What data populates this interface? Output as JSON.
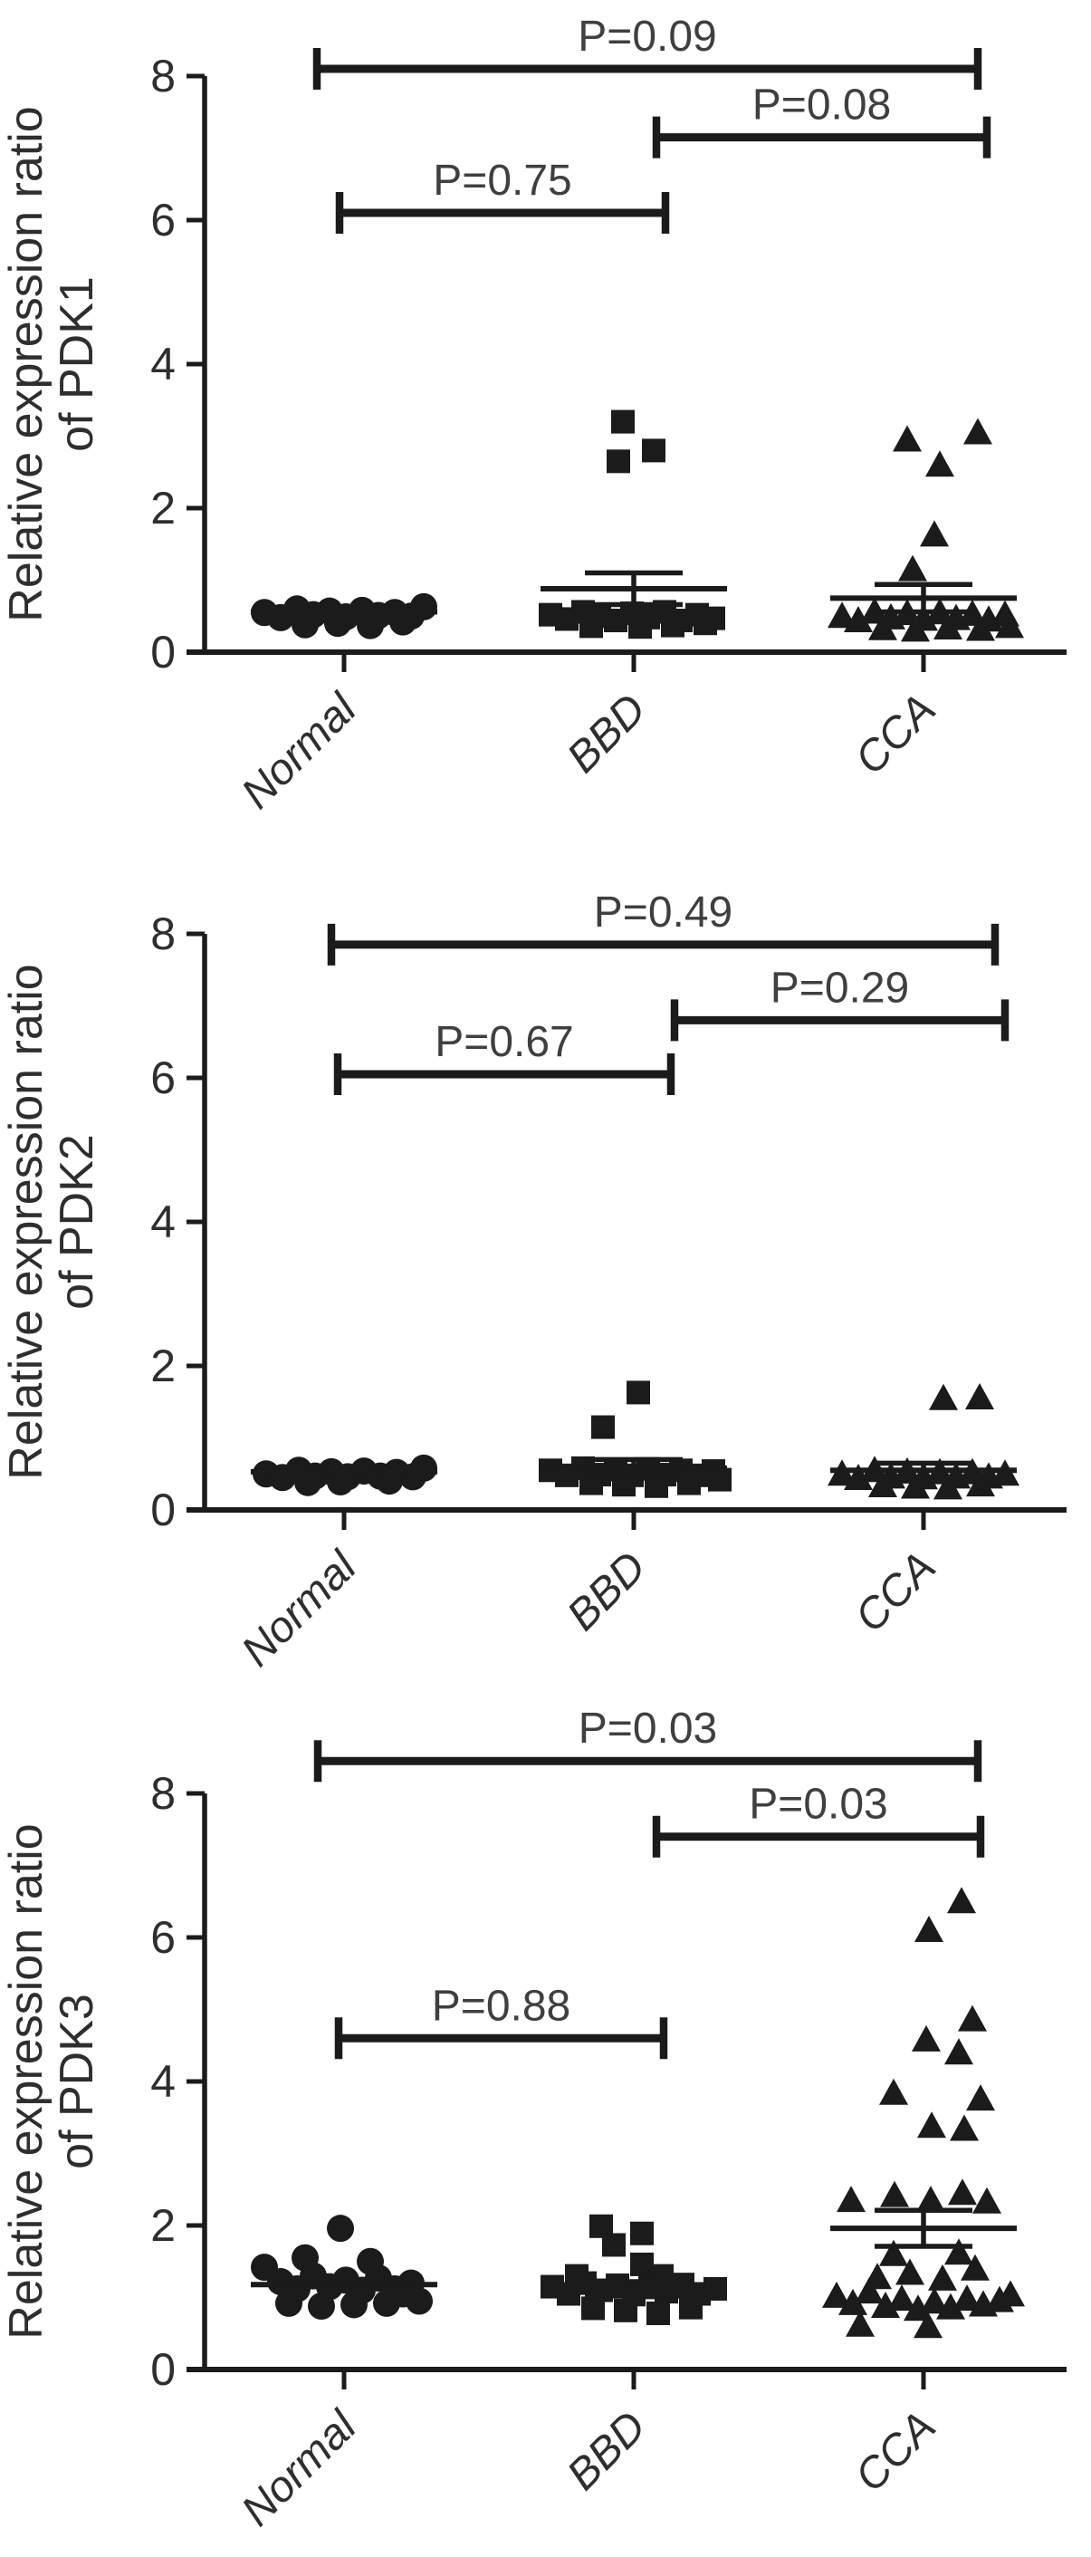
{
  "figure": {
    "ink_color": "#1b1b1b",
    "text_strong": "#2e2e2e",
    "text_soft": "#3f3f3f",
    "background": "#ffffff"
  },
  "chart_data": [
    {
      "type": "scatter",
      "panel": "PDK1",
      "ylabel_line1": "Relative expression ratio",
      "ylabel_line2": "of PDK1",
      "ylim": [
        0,
        8
      ],
      "yticks": [
        0,
        2,
        4,
        6,
        8
      ],
      "grid": false,
      "categories": [
        "Normal",
        "BBD",
        "CCA"
      ],
      "groups": [
        {
          "name": "Normal",
          "marker": "circle",
          "mean": 0.56,
          "sem": 0,
          "points": [
            [
              -88,
              0.55
            ],
            [
              -70,
              0.48
            ],
            [
              -52,
              0.6
            ],
            [
              -34,
              0.52
            ],
            [
              -16,
              0.57
            ],
            [
              2,
              0.49
            ],
            [
              20,
              0.58
            ],
            [
              38,
              0.51
            ],
            [
              56,
              0.55
            ],
            [
              74,
              0.5
            ],
            [
              -43,
              0.38
            ],
            [
              -7,
              0.4
            ],
            [
              29,
              0.37
            ],
            [
              65,
              0.42
            ],
            [
              88,
              0.63
            ]
          ]
        },
        {
          "name": "BBD",
          "marker": "square",
          "mean": 0.88,
          "sem": 0.22,
          "points": [
            [
              -92,
              0.52
            ],
            [
              -74,
              0.46
            ],
            [
              -56,
              0.56
            ],
            [
              -38,
              0.5
            ],
            [
              -20,
              0.44
            ],
            [
              -2,
              0.54
            ],
            [
              16,
              0.48
            ],
            [
              34,
              0.56
            ],
            [
              52,
              0.44
            ],
            [
              70,
              0.52
            ],
            [
              88,
              0.47
            ],
            [
              -47,
              0.36
            ],
            [
              7,
              0.35
            ],
            [
              43,
              0.37
            ],
            [
              79,
              0.4
            ],
            [
              -12,
              3.2
            ],
            [
              -17,
              2.65
            ],
            [
              22,
              2.8
            ]
          ]
        },
        {
          "name": "CCA",
          "marker": "triangle",
          "mean": 0.75,
          "sem": 0.19,
          "points": [
            [
              -90,
              0.5
            ],
            [
              -72,
              0.44
            ],
            [
              -54,
              0.56
            ],
            [
              -36,
              0.48
            ],
            [
              -18,
              0.54
            ],
            [
              0,
              0.46
            ],
            [
              18,
              0.55
            ],
            [
              36,
              0.47
            ],
            [
              54,
              0.53
            ],
            [
              72,
              0.45
            ],
            [
              90,
              0.52
            ],
            [
              -45,
              0.33
            ],
            [
              -9,
              0.31
            ],
            [
              27,
              0.34
            ],
            [
              63,
              0.32
            ],
            [
              95,
              0.36
            ],
            [
              -18,
              2.95
            ],
            [
              18,
              2.6
            ],
            [
              60,
              3.05
            ],
            [
              12,
              1.63
            ],
            [
              -12,
              1.15
            ]
          ]
        }
      ],
      "comparisons": [
        {
          "label": "P=0.75",
          "from": 0,
          "to": 1,
          "bar": 6.1,
          "dx": [
            -5,
            35
          ]
        },
        {
          "label": "P=0.08",
          "from": 1,
          "to": 2,
          "bar": 7.15,
          "dx": [
            25,
            70
          ]
        },
        {
          "label": "P=0.09",
          "from": 0,
          "to": 2,
          "bar": 8.1,
          "dx": [
            -30,
            60
          ]
        }
      ]
    },
    {
      "type": "scatter",
      "panel": "PDK2",
      "ylabel_line1": "Relative expression ratio",
      "ylabel_line2": "of PDK2",
      "ylim": [
        0,
        8
      ],
      "yticks": [
        0,
        2,
        4,
        6,
        8
      ],
      "grid": false,
      "categories": [
        "Normal",
        "BBD",
        "CCA"
      ],
      "groups": [
        {
          "name": "Normal",
          "marker": "circle",
          "mean": 0.53,
          "sem": 0,
          "points": [
            [
              -86,
              0.5
            ],
            [
              -68,
              0.45
            ],
            [
              -50,
              0.55
            ],
            [
              -32,
              0.47
            ],
            [
              -14,
              0.53
            ],
            [
              4,
              0.46
            ],
            [
              22,
              0.54
            ],
            [
              40,
              0.47
            ],
            [
              58,
              0.52
            ],
            [
              76,
              0.46
            ],
            [
              -40,
              0.38
            ],
            [
              -4,
              0.39
            ],
            [
              50,
              0.4
            ],
            [
              88,
              0.58
            ]
          ]
        },
        {
          "name": "BBD",
          "marker": "square",
          "mean": 0.58,
          "sem": 0.12,
          "points": [
            [
              -92,
              0.55
            ],
            [
              -74,
              0.48
            ],
            [
              -56,
              0.58
            ],
            [
              -38,
              0.49
            ],
            [
              -20,
              0.56
            ],
            [
              -2,
              0.48
            ],
            [
              16,
              0.57
            ],
            [
              34,
              0.49
            ],
            [
              52,
              0.55
            ],
            [
              70,
              0.48
            ],
            [
              88,
              0.54
            ],
            [
              -47,
              0.37
            ],
            [
              -11,
              0.35
            ],
            [
              25,
              0.33
            ],
            [
              61,
              0.37
            ],
            [
              95,
              0.42
            ],
            [
              5,
              1.63
            ],
            [
              -34,
              1.15
            ]
          ]
        },
        {
          "name": "CCA",
          "marker": "triangle",
          "mean": 0.55,
          "sem": 0.1,
          "points": [
            [
              -90,
              0.5
            ],
            [
              -72,
              0.44
            ],
            [
              -54,
              0.55
            ],
            [
              -36,
              0.46
            ],
            [
              -18,
              0.53
            ],
            [
              0,
              0.45
            ],
            [
              18,
              0.52
            ],
            [
              36,
              0.46
            ],
            [
              54,
              0.52
            ],
            [
              72,
              0.46
            ],
            [
              90,
              0.5
            ],
            [
              -45,
              0.34
            ],
            [
              -9,
              0.32
            ],
            [
              27,
              0.31
            ],
            [
              63,
              0.35
            ],
            [
              22,
              1.55
            ],
            [
              62,
              1.56
            ]
          ]
        }
      ],
      "comparisons": [
        {
          "label": "P=0.67",
          "from": 0,
          "to": 1,
          "bar": 6.05,
          "dx": [
            -7,
            41
          ]
        },
        {
          "label": "P=0.29",
          "from": 1,
          "to": 2,
          "bar": 6.8,
          "dx": [
            45,
            90
          ]
        },
        {
          "label": "P=0.49",
          "from": 0,
          "to": 2,
          "bar": 7.85,
          "dx": [
            -14,
            79
          ]
        }
      ]
    },
    {
      "type": "scatter",
      "panel": "PDK3",
      "ylabel_line1": "Relative expression ratio",
      "ylabel_line2": "of PDK3",
      "ylim": [
        0,
        8
      ],
      "yticks": [
        0,
        2,
        4,
        6,
        8
      ],
      "grid": false,
      "categories": [
        "Normal",
        "BBD",
        "CCA"
      ],
      "groups": [
        {
          "name": "Normal",
          "marker": "circle",
          "mean": 1.18,
          "sem": 0,
          "points": [
            [
              -88,
              1.42
            ],
            [
              -70,
              1.22
            ],
            [
              -52,
              1.12
            ],
            [
              -34,
              1.3
            ],
            [
              -16,
              1.15
            ],
            [
              2,
              1.24
            ],
            [
              20,
              1.1
            ],
            [
              38,
              1.27
            ],
            [
              56,
              1.12
            ],
            [
              74,
              1.2
            ],
            [
              -61,
              0.92
            ],
            [
              -25,
              0.88
            ],
            [
              11,
              0.9
            ],
            [
              47,
              0.92
            ],
            [
              83,
              0.95
            ],
            [
              -43,
              1.55
            ],
            [
              29,
              1.5
            ],
            [
              65,
              1.05
            ],
            [
              -4,
              1.96
            ]
          ]
        },
        {
          "name": "BBD",
          "marker": "square",
          "mean": 1.12,
          "sem": 0.1,
          "points": [
            [
              -90,
              1.15
            ],
            [
              -72,
              1.05
            ],
            [
              -54,
              1.2
            ],
            [
              -36,
              1.1
            ],
            [
              -18,
              1.17
            ],
            [
              0,
              1.04
            ],
            [
              18,
              1.14
            ],
            [
              36,
              1.08
            ],
            [
              54,
              1.18
            ],
            [
              72,
              1.05
            ],
            [
              90,
              1.12
            ],
            [
              -45,
              0.85
            ],
            [
              -9,
              0.82
            ],
            [
              27,
              0.78
            ],
            [
              63,
              0.86
            ],
            [
              -63,
              1.3
            ],
            [
              -36,
              1.99
            ],
            [
              9,
              1.89
            ],
            [
              -22,
              1.73
            ],
            [
              9,
              1.46
            ],
            [
              31,
              1.3
            ]
          ]
        },
        {
          "name": "CCA",
          "marker": "triangle",
          "mean": 1.96,
          "sem": 0.25,
          "points": [
            [
              -96,
              1.02
            ],
            [
              -78,
              0.92
            ],
            [
              -60,
              1.08
            ],
            [
              -42,
              0.88
            ],
            [
              -24,
              0.98
            ],
            [
              -6,
              0.84
            ],
            [
              12,
              0.94
            ],
            [
              30,
              0.86
            ],
            [
              48,
              0.98
            ],
            [
              66,
              0.9
            ],
            [
              84,
              0.96
            ],
            [
              96,
              1.04
            ],
            [
              -51,
              1.28
            ],
            [
              -15,
              1.34
            ],
            [
              21,
              1.26
            ],
            [
              57,
              1.4
            ],
            [
              -33,
              1.6
            ],
            [
              39,
              1.62
            ],
            [
              5,
              0.6
            ],
            [
              -70,
              0.62
            ],
            [
              -80,
              2.35
            ],
            [
              -32,
              2.42
            ],
            [
              8,
              2.35
            ],
            [
              43,
              2.45
            ],
            [
              70,
              2.33
            ],
            [
              9,
              3.38
            ],
            [
              45,
              3.34
            ],
            [
              -33,
              3.84
            ],
            [
              63,
              3.76
            ],
            [
              3,
              4.58
            ],
            [
              39,
              4.4
            ],
            [
              54,
              4.86
            ],
            [
              6,
              6.1
            ],
            [
              42,
              6.5
            ]
          ]
        }
      ],
      "comparisons": [
        {
          "label": "P=0.88",
          "from": 0,
          "to": 1,
          "bar": 4.6,
          "dx": [
            -6,
            33
          ]
        },
        {
          "label": "P=0.03",
          "from": 1,
          "to": 2,
          "bar": 7.4,
          "dx": [
            25,
            63
          ]
        },
        {
          "label": "P=0.03",
          "from": 0,
          "to": 2,
          "bar": 8.45,
          "dx": [
            -29,
            60
          ]
        }
      ]
    }
  ]
}
